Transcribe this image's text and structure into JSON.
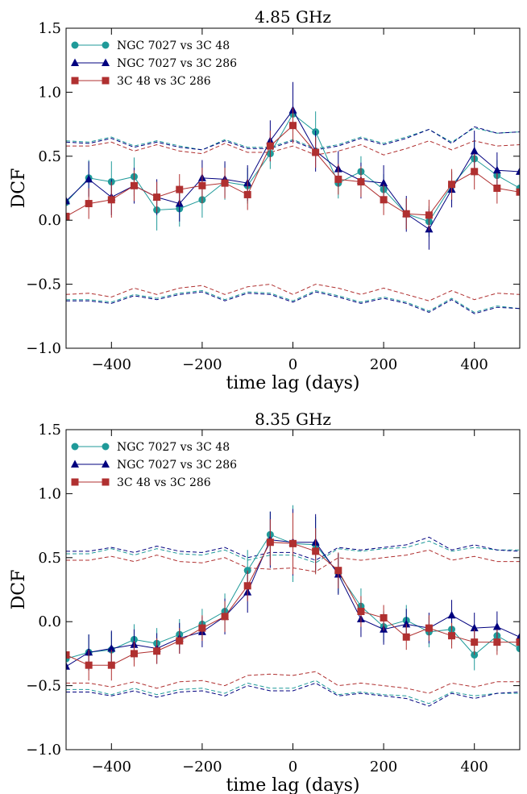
{
  "chart_data": [
    {
      "type": "line",
      "title": "4.85 GHz",
      "xlabel": "time lag (days)",
      "ylabel": "DCF",
      "xlim": [
        -500,
        500
      ],
      "ylim": [
        -1.0,
        1.5
      ],
      "xticks": [
        -400,
        -200,
        0,
        200,
        400
      ],
      "xtick_labels": [
        "−400",
        "−200",
        "0",
        "200",
        "400"
      ],
      "yticks": [
        -1.0,
        -0.5,
        0.0,
        0.5,
        1.0,
        1.5
      ],
      "ytick_labels": [
        "−1.0",
        "−0.5",
        "0.0",
        "0.5",
        "1.0",
        "1.5"
      ],
      "legend_position": "top-left",
      "x": [
        -500,
        -450,
        -400,
        -350,
        -300,
        -250,
        -200,
        -150,
        -100,
        -50,
        0,
        50,
        100,
        150,
        200,
        250,
        300,
        350,
        400,
        450,
        500
      ],
      "series": [
        {
          "name": "NGC 7027 vs 3C 48",
          "marker": "circle",
          "color": "#1f9a99",
          "values": [
            0.14,
            0.33,
            0.3,
            0.34,
            0.08,
            0.09,
            0.16,
            0.3,
            0.27,
            0.52,
            0.83,
            0.69,
            0.29,
            0.38,
            0.24,
            0.05,
            -0.01,
            0.27,
            0.48,
            0.35,
            0.25
          ],
          "errors": [
            0.1,
            0.14,
            0.16,
            0.15,
            0.16,
            0.14,
            0.14,
            0.14,
            0.14,
            0.12,
            0.16,
            0.16,
            0.12,
            0.12,
            0.12,
            0.12,
            0.12,
            0.12,
            0.14,
            0.12,
            0.12
          ],
          "upper": [
            0.62,
            0.61,
            0.65,
            0.58,
            0.62,
            0.58,
            0.55,
            0.63,
            0.57,
            0.57,
            0.63,
            0.56,
            0.59,
            0.65,
            0.6,
            0.65,
            0.71,
            0.61,
            0.72,
            0.68,
            0.69
          ],
          "lower": [
            -0.62,
            -0.62,
            -0.64,
            -0.58,
            -0.61,
            -0.57,
            -0.55,
            -0.62,
            -0.56,
            -0.57,
            -0.63,
            -0.55,
            -0.59,
            -0.64,
            -0.6,
            -0.64,
            -0.71,
            -0.61,
            -0.72,
            -0.67,
            -0.69
          ]
        },
        {
          "name": "NGC 7027 vs 3C 286",
          "marker": "triangle",
          "color": "#00007f",
          "values": [
            0.15,
            0.32,
            0.18,
            0.27,
            0.18,
            0.13,
            0.33,
            0.32,
            0.29,
            0.62,
            0.86,
            0.54,
            0.4,
            0.31,
            0.29,
            0.05,
            -0.07,
            0.24,
            0.54,
            0.39,
            0.38
          ],
          "errors": [
            0.12,
            0.14,
            0.14,
            0.14,
            0.14,
            0.14,
            0.14,
            0.14,
            0.14,
            0.16,
            0.22,
            0.16,
            0.14,
            0.14,
            0.14,
            0.14,
            0.16,
            0.14,
            0.16,
            0.14,
            0.14
          ],
          "upper": [
            0.61,
            0.6,
            0.64,
            0.57,
            0.61,
            0.57,
            0.55,
            0.62,
            0.56,
            0.56,
            0.62,
            0.55,
            0.58,
            0.64,
            0.59,
            0.64,
            0.71,
            0.6,
            0.73,
            0.68,
            0.69
          ],
          "lower": [
            -0.63,
            -0.63,
            -0.65,
            -0.59,
            -0.62,
            -0.58,
            -0.56,
            -0.63,
            -0.57,
            -0.58,
            -0.64,
            -0.56,
            -0.6,
            -0.65,
            -0.61,
            -0.65,
            -0.72,
            -0.62,
            -0.73,
            -0.68,
            -0.69
          ]
        },
        {
          "name": "3C 48 vs 3C 286",
          "marker": "square",
          "color": "#b03030",
          "values": [
            0.03,
            0.13,
            0.16,
            0.27,
            0.18,
            0.24,
            0.27,
            0.29,
            0.2,
            0.58,
            0.74,
            0.53,
            0.32,
            0.3,
            0.16,
            0.05,
            0.04,
            0.28,
            0.38,
            0.25,
            0.22
          ],
          "errors": [
            0.1,
            0.12,
            0.14,
            0.12,
            0.12,
            0.12,
            0.14,
            0.12,
            0.12,
            0.12,
            0.14,
            0.12,
            0.12,
            0.12,
            0.12,
            0.12,
            0.12,
            0.12,
            0.14,
            0.12,
            0.12
          ],
          "upper": [
            0.58,
            0.58,
            0.61,
            0.54,
            0.59,
            0.54,
            0.52,
            0.6,
            0.53,
            0.53,
            0.58,
            0.51,
            0.54,
            0.59,
            0.51,
            0.56,
            0.62,
            0.55,
            0.62,
            0.58,
            0.59
          ],
          "lower": [
            -0.58,
            -0.57,
            -0.6,
            -0.53,
            -0.58,
            -0.53,
            -0.51,
            -0.58,
            -0.52,
            -0.5,
            -0.58,
            -0.5,
            -0.53,
            -0.58,
            -0.53,
            -0.58,
            -0.63,
            -0.55,
            -0.62,
            -0.57,
            -0.58
          ]
        }
      ]
    },
    {
      "type": "line",
      "title": "8.35 GHz",
      "xlabel": "time lag (days)",
      "ylabel": "DCF",
      "xlim": [
        -500,
        500
      ],
      "ylim": [
        -1.0,
        1.5
      ],
      "xticks": [
        -400,
        -200,
        0,
        200,
        400
      ],
      "xtick_labels": [
        "−400",
        "−200",
        "0",
        "200",
        "400"
      ],
      "yticks": [
        -1.0,
        -0.5,
        0.0,
        0.5,
        1.0,
        1.5
      ],
      "ytick_labels": [
        "−1.0",
        "−0.5",
        "0.0",
        "0.5",
        "1.0",
        "1.5"
      ],
      "legend_position": "top-left",
      "x": [
        -500,
        -450,
        -400,
        -350,
        -300,
        -250,
        -200,
        -150,
        -100,
        -50,
        0,
        50,
        100,
        150,
        200,
        250,
        300,
        350,
        400,
        450,
        500
      ],
      "series": [
        {
          "name": "NGC 7027 vs 3C 48",
          "marker": "circle",
          "color": "#1f9a99",
          "values": [
            -0.29,
            -0.24,
            -0.22,
            -0.14,
            -0.17,
            -0.1,
            -0.02,
            0.08,
            0.4,
            0.68,
            0.61,
            0.6,
            0.38,
            0.12,
            -0.04,
            0.01,
            -0.08,
            -0.06,
            -0.26,
            -0.11,
            -0.21
          ],
          "errors": [
            0.12,
            0.14,
            0.14,
            0.12,
            0.12,
            0.12,
            0.12,
            0.14,
            0.16,
            0.18,
            0.3,
            0.22,
            0.16,
            0.14,
            0.12,
            0.12,
            0.12,
            0.12,
            0.12,
            0.12,
            0.12
          ],
          "upper": [
            0.53,
            0.53,
            0.57,
            0.52,
            0.57,
            0.53,
            0.52,
            0.56,
            0.48,
            0.52,
            0.52,
            0.46,
            0.57,
            0.55,
            0.57,
            0.58,
            0.63,
            0.55,
            0.58,
            0.56,
            0.56
          ],
          "lower": [
            -0.53,
            -0.53,
            -0.57,
            -0.52,
            -0.57,
            -0.53,
            -0.52,
            -0.56,
            -0.48,
            -0.52,
            -0.52,
            -0.46,
            -0.57,
            -0.55,
            -0.57,
            -0.58,
            -0.64,
            -0.55,
            -0.58,
            -0.56,
            -0.56
          ]
        },
        {
          "name": "NGC 7027 vs 3C 286",
          "marker": "triangle",
          "color": "#00007f",
          "values": [
            -0.35,
            -0.24,
            -0.21,
            -0.18,
            -0.21,
            -0.13,
            -0.08,
            0.04,
            0.23,
            0.64,
            0.62,
            0.62,
            0.37,
            0.02,
            -0.06,
            -0.02,
            -0.05,
            0.05,
            -0.05,
            -0.04,
            -0.12
          ],
          "errors": [
            0.12,
            0.14,
            0.14,
            0.12,
            0.12,
            0.12,
            0.12,
            0.14,
            0.16,
            0.22,
            0.26,
            0.22,
            0.16,
            0.14,
            0.12,
            0.12,
            0.12,
            0.12,
            0.12,
            0.12,
            0.12
          ],
          "upper": [
            0.55,
            0.55,
            0.58,
            0.54,
            0.59,
            0.55,
            0.54,
            0.58,
            0.5,
            0.54,
            0.54,
            0.48,
            0.58,
            0.56,
            0.58,
            0.6,
            0.66,
            0.56,
            0.6,
            0.56,
            0.55
          ],
          "lower": [
            -0.55,
            -0.55,
            -0.58,
            -0.54,
            -0.59,
            -0.55,
            -0.54,
            -0.58,
            -0.5,
            -0.54,
            -0.54,
            -0.48,
            -0.58,
            -0.56,
            -0.58,
            -0.6,
            -0.66,
            -0.56,
            -0.6,
            -0.56,
            -0.55
          ]
        },
        {
          "name": "3C 48 vs 3C 286",
          "marker": "square",
          "color": "#b03030",
          "values": [
            -0.26,
            -0.34,
            -0.34,
            -0.25,
            -0.23,
            -0.15,
            -0.05,
            0.04,
            0.28,
            0.62,
            0.61,
            0.55,
            0.4,
            0.08,
            0.03,
            -0.12,
            -0.05,
            -0.11,
            -0.16,
            -0.16,
            -0.16
          ],
          "errors": [
            0.1,
            0.12,
            0.12,
            0.1,
            0.1,
            0.1,
            0.1,
            0.12,
            0.12,
            0.18,
            0.24,
            0.18,
            0.14,
            0.12,
            0.1,
            0.1,
            0.1,
            0.1,
            0.1,
            0.1,
            0.1
          ],
          "upper": [
            0.48,
            0.48,
            0.51,
            0.47,
            0.52,
            0.47,
            0.46,
            0.5,
            0.42,
            0.41,
            0.42,
            0.39,
            0.5,
            0.48,
            0.5,
            0.52,
            0.56,
            0.48,
            0.51,
            0.47,
            0.47
          ],
          "lower": [
            -0.48,
            -0.48,
            -0.51,
            -0.47,
            -0.52,
            -0.47,
            -0.46,
            -0.5,
            -0.42,
            -0.41,
            -0.42,
            -0.39,
            -0.5,
            -0.48,
            -0.5,
            -0.52,
            -0.56,
            -0.48,
            -0.51,
            -0.47,
            -0.47
          ]
        }
      ]
    }
  ]
}
